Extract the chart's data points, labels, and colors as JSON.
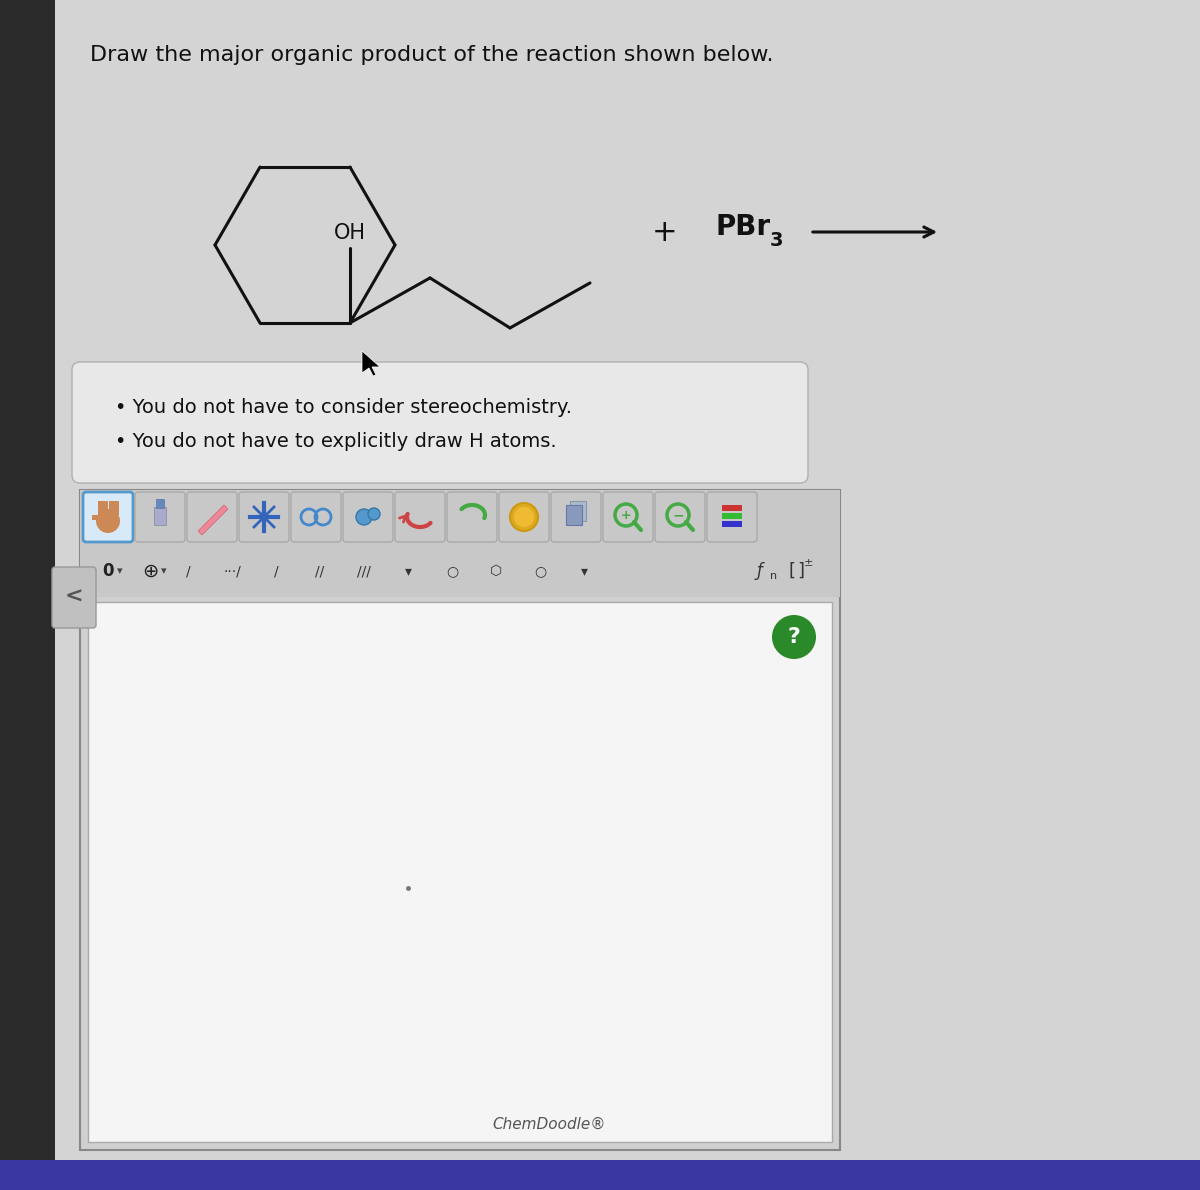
{
  "title": "Draw the major organic product of the reaction shown below.",
  "title_fontsize": 16,
  "background_color": "#c8c8c8",
  "page_bg": "#e8e8e8",
  "content_bg": "#e0e0e0",
  "bullet1": "You do not have to consider stereochemistry.",
  "bullet2": "You do not have to explicitly draw H atoms.",
  "bullet_fontsize": 14,
  "oh_label": "OH",
  "chemdoodle_label": "ChemDoodle®",
  "line_color": "#111111",
  "text_color": "#111111",
  "box_bg": "#efefef",
  "draw_area_bg": "#f8f8f8",
  "arrow_color": "#111111",
  "question_circle_color": "#2a8a2a",
  "question_text_color": "#ffffff",
  "left_bar_color": "#3a3a3a",
  "bottom_bar_color": "#4a4a9a"
}
